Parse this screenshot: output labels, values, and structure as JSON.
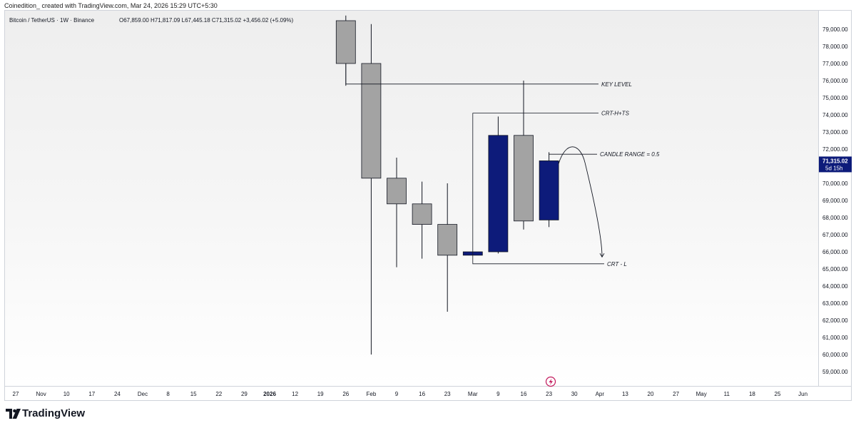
{
  "credit": "Coinedition_ created with TradingView.com, Mar 24, 2026 15:29 UTC+5:30",
  "header": {
    "symbol": "Bitcoin / TetherUS · 1W · Binance",
    "ohlc": "O67,859.00 H71,817.09 L67,445.18 C71,315.02 +3,456.02 (+5.09%)"
  },
  "footer": {
    "logo_text": "TradingView"
  },
  "colors": {
    "bear_fill": "#a3a3a3",
    "bull_fill": "#0d1b7a",
    "price_badge": "#0d1b7a",
    "line": "#131722"
  },
  "chart_data": {
    "type": "candlestick",
    "title": "",
    "xlabel": "",
    "ylabel": "",
    "ylim": [
      58000,
      80000
    ],
    "grid": false,
    "y_ticks": [
      "59,000.00",
      "60,000.00",
      "61,000.00",
      "62,000.00",
      "63,000.00",
      "64,000.00",
      "65,000.00",
      "66,000.00",
      "67,000.00",
      "68,000.00",
      "69,000.00",
      "70,000.00",
      "71,000.00",
      "72,000.00",
      "73,000.00",
      "74,000.00",
      "75,000.00",
      "76,000.00",
      "77,000.00",
      "78,000.00",
      "79,000.00"
    ],
    "y_tick_values": [
      59000,
      60000,
      61000,
      62000,
      63000,
      64000,
      65000,
      66000,
      67000,
      68000,
      69000,
      70000,
      71000,
      72000,
      73000,
      74000,
      75000,
      76000,
      77000,
      78000,
      79000
    ],
    "x_ticks": [
      "27",
      "Nov",
      "10",
      "17",
      "24",
      "Dec",
      "8",
      "15",
      "22",
      "29",
      "2026",
      "12",
      "19",
      "26",
      "Feb",
      "9",
      "16",
      "23",
      "Mar",
      "9",
      "16",
      "23",
      "30",
      "Apr",
      "13",
      "20",
      "27",
      "May",
      "11",
      "18",
      "25",
      "Jun"
    ],
    "x_tick_bold": [
      "2026"
    ],
    "candles": [
      {
        "label": "Jan 26",
        "open": 79500,
        "high": 79800,
        "low": 75700,
        "close": 77000,
        "color": "gray"
      },
      {
        "label": "Feb 2",
        "open": 77000,
        "high": 79300,
        "low": 60000,
        "close": 70300,
        "color": "gray"
      },
      {
        "label": "Feb 9",
        "open": 70300,
        "high": 71500,
        "low": 65100,
        "close": 68800,
        "color": "gray"
      },
      {
        "label": "Feb 16",
        "open": 68800,
        "high": 70100,
        "low": 65600,
        "close": 67600,
        "color": "gray"
      },
      {
        "label": "Feb 23",
        "open": 67600,
        "high": 70000,
        "low": 62500,
        "close": 65800,
        "color": "gray"
      },
      {
        "label": "Mar 2",
        "open": 65800,
        "high": 66000,
        "low": 65800,
        "close": 66000,
        "color": "blue"
      },
      {
        "label": "Mar 9",
        "open": 66000,
        "high": 73900,
        "low": 65900,
        "close": 72800,
        "color": "blue"
      },
      {
        "label": "Mar 16",
        "open": 72800,
        "high": 76000,
        "low": 67300,
        "close": 67800,
        "color": "gray"
      },
      {
        "label": "Mar 23",
        "open": 67859,
        "high": 71817.09,
        "low": 67445.18,
        "close": 71315.02,
        "color": "blue"
      }
    ],
    "current_price": {
      "value": 71315.02,
      "label": "71,315.02",
      "countdown": "5d 15h"
    },
    "annotations": [
      {
        "text": "KEY LEVEL",
        "price": 75800
      },
      {
        "text": "CRT-H+TS",
        "price": 74100
      },
      {
        "text": "CANDLE RANGE = 0.5",
        "price": 71700
      },
      {
        "text": "CRT - L",
        "price": 65300
      }
    ]
  }
}
